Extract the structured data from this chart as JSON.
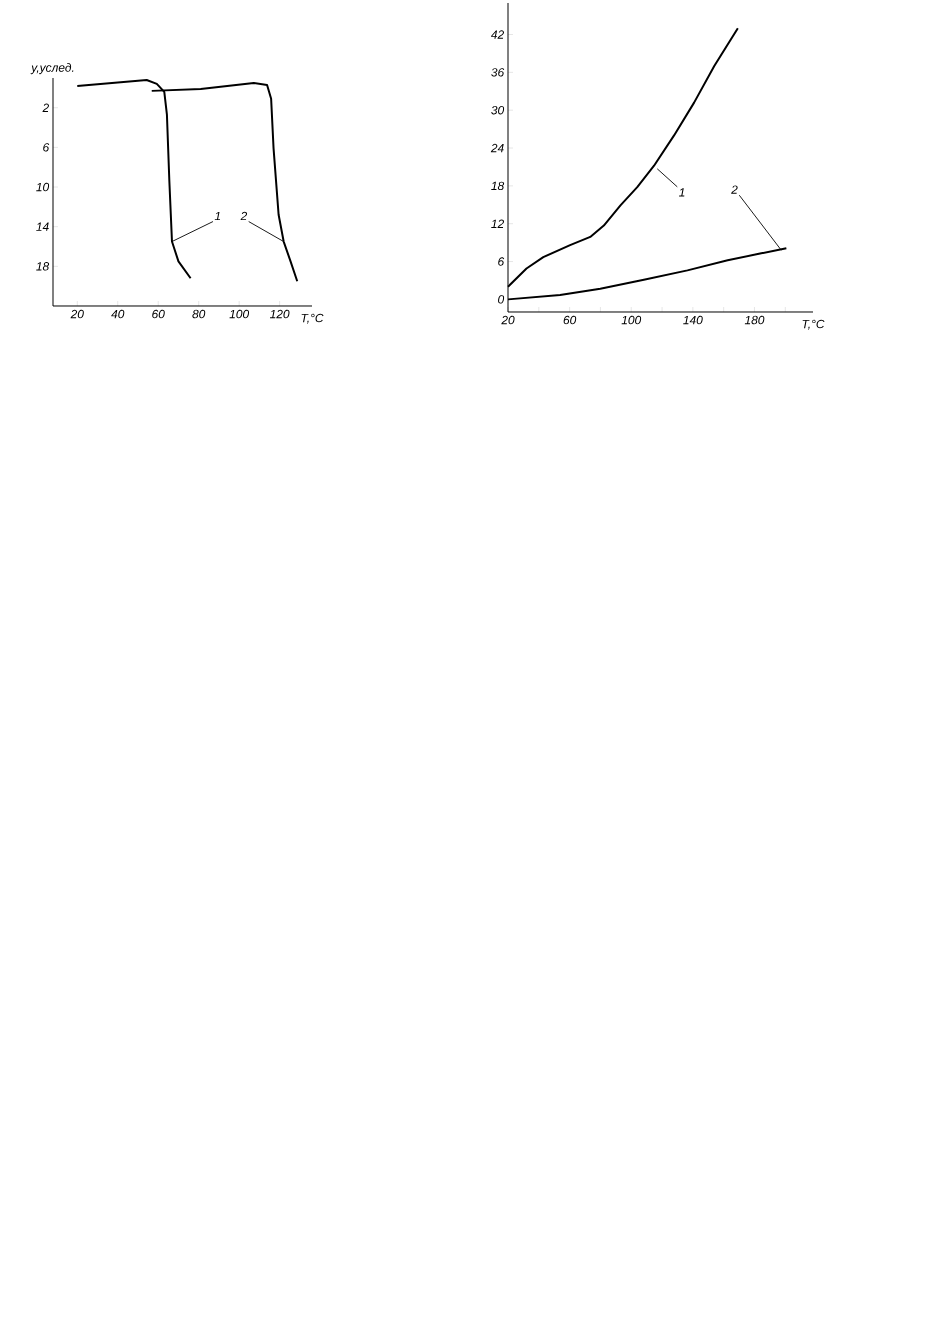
{
  "chart_data": [
    {
      "type": "line",
      "xlabel": "T,°C",
      "ylabel": "y,услед.",
      "xlim": [
        8,
        136
      ],
      "ylim": [
        22,
        -1
      ],
      "xticks": [
        20,
        40,
        60,
        80,
        100,
        120
      ],
      "yticks": [
        2,
        6,
        10,
        14,
        18
      ],
      "series": [
        {
          "color": "#000000",
          "x": [
            20,
            54.3,
            59.3,
            63,
            64.3,
            65.5,
            66.8,
            70,
            76
          ],
          "values": [
            -0.2,
            -0.8,
            -0.4,
            0.4,
            2.7,
            9.4,
            15.5,
            17.5,
            19.2
          ]
        },
        {
          "color": "#000000",
          "x": [
            56.8,
            81,
            107.2,
            113.8,
            115.8,
            117,
            119.5,
            122,
            125.4,
            128.7
          ],
          "values": [
            0.3,
            0.1,
            -0.5,
            -0.3,
            1.1,
            6.1,
            12.8,
            15.5,
            17.5,
            19.5
          ]
        }
      ],
      "annotations": [
        {
          "text": "1",
          "x": 66.8,
          "y": 15.5
        },
        {
          "text": "2",
          "x": 122,
          "y": 15.5
        }
      ]
    },
    {
      "type": "line",
      "xlabel": "T,°C",
      "xlim": [
        20,
        218
      ],
      "ylim": [
        -2,
        47
      ],
      "xticks": [
        20,
        {
          "value": 40,
          "label": null
        },
        60,
        {
          "value": 80,
          "label": null
        },
        100,
        {
          "value": 120,
          "label": null
        },
        140,
        {
          "value": 160,
          "label": null
        },
        180,
        {
          "value": 200,
          "label": null
        }
      ],
      "yticks": [
        0,
        6,
        12,
        18,
        24,
        30,
        36,
        42
      ],
      "series": [
        {
          "color": "#000000",
          "x": [
            20,
            32,
            42.9,
            60.3,
            73.4,
            82.2,
            93,
            103.9,
            114.8,
            127.8,
            140.8,
            153.9,
            169.2
          ],
          "values": [
            2.0,
            4.9,
            6.7,
            8.6,
            9.9,
            11.7,
            14.9,
            17.8,
            21.2,
            26,
            31.2,
            37,
            43
          ]
        },
        {
          "color": "#000000",
          "x": [
            20,
            53.8,
            79.9,
            108.2,
            136.5,
            162.6,
            184.4,
            200.7
          ],
          "values": [
            0,
            0.7,
            1.7,
            3.1,
            4.6,
            6.2,
            7.3,
            8.1
          ]
        }
      ],
      "annotations": [
        {
          "text": "1",
          "x": 116.9,
          "y": 20.7
        },
        {
          "text": "2",
          "x": 197.4,
          "y": 7.8
        }
      ]
    }
  ]
}
